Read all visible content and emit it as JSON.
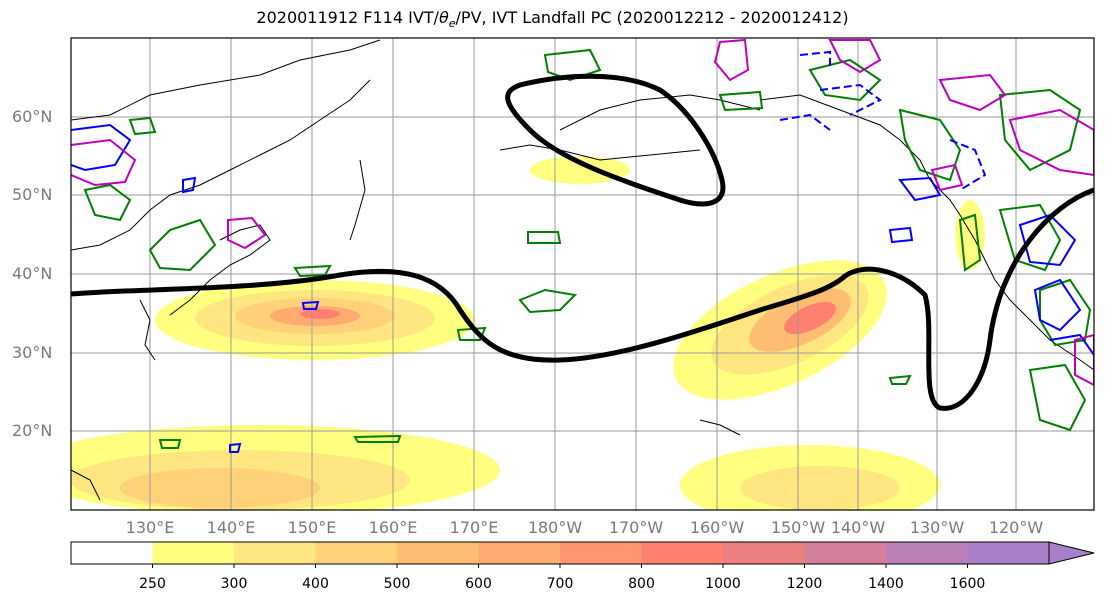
{
  "title": "2020011912 F114 IVT/θe/PV, IVT Landfall PC (2020012212 - 2020012412)",
  "title_parts": {
    "prefix": "2020011912 F114 IVT/",
    "theta": "θ",
    "theta_sub": "e",
    "suffix": "/PV, IVT Landfall PC (2020012212 - 2020012412)"
  },
  "lat_labels": [
    "60°N",
    "50°N",
    "40°N",
    "30°N",
    "20°N"
  ],
  "lon_labels": [
    "130°E",
    "140°E",
    "150°E",
    "160°E",
    "170°E",
    "180°W",
    "170°W",
    "160°W",
    "150°W",
    "140°W",
    "130°W",
    "120°W"
  ],
  "colorbar": {
    "ticks": [
      "250",
      "300",
      "400",
      "500",
      "600",
      "700",
      "800",
      "1000",
      "1200",
      "1400",
      "1600"
    ],
    "colors": [
      "#ffffff",
      "#ffff80",
      "#ffe680",
      "#ffd27a",
      "#ffbd73",
      "#ffaa70",
      "#ff9470",
      "#ff8070",
      "#ee7f80",
      "#d4809a",
      "#bb80b8",
      "#a880c8",
      "#a880c8"
    ]
  },
  "colors": {
    "ivt_fill_low": "#ffff80",
    "ivt_fill_high": "#ff8070",
    "landfall_pc_contour": "#000000",
    "theta_e_contour": "#008000",
    "pv_contour": "#0000ff",
    "magenta_contour": "#c000c0"
  },
  "icons": [
    "coastline",
    "landfall-contour",
    "ivt-shading"
  ]
}
